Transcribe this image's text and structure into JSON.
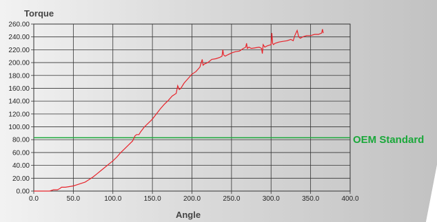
{
  "chart_data": {
    "type": "line",
    "ylabel": "Torque",
    "xlabel": "Angle",
    "xlim": [
      0,
      400
    ],
    "ylim": [
      0,
      260
    ],
    "x_ticks": [
      "0.0",
      "50.0",
      "100.0",
      "150.0",
      "200.0",
      "250.0",
      "300.0",
      "350.0",
      "400.0"
    ],
    "y_ticks": [
      "0.00",
      "20.00",
      "40.00",
      "60.00",
      "80.00",
      "100.00",
      "120.00",
      "140.00",
      "160.00",
      "180.00",
      "200.00",
      "220.00",
      "240.00",
      "260.00"
    ],
    "grid": true,
    "series": [
      {
        "color": "#e8232a",
        "x": [
          0,
          20,
          25,
          30,
          33,
          35,
          40,
          45,
          50,
          55,
          60,
          65,
          70,
          75,
          80,
          85,
          90,
          95,
          100,
          105,
          110,
          115,
          120,
          125,
          128,
          130,
          133,
          135,
          140,
          145,
          150,
          155,
          160,
          165,
          170,
          175,
          180,
          182,
          184,
          186,
          190,
          195,
          200,
          205,
          210,
          213,
          214,
          216,
          220,
          225,
          230,
          235,
          238,
          239,
          240,
          242,
          245,
          250,
          255,
          260,
          265,
          268,
          269,
          270,
          272,
          275,
          280,
          285,
          288,
          289,
          290,
          292,
          295,
          300,
          301,
          302,
          303,
          305,
          310,
          315,
          320,
          325,
          328,
          330,
          333,
          335,
          337,
          340,
          345,
          350,
          355,
          360,
          364,
          365,
          366
        ],
        "y": [
          0,
          0,
          2,
          2,
          4,
          6,
          6,
          7,
          8,
          10,
          12,
          14,
          18,
          22,
          27,
          32,
          37,
          42,
          47,
          53,
          60,
          66,
          72,
          78,
          86,
          88,
          88,
          92,
          100,
          106,
          112,
          120,
          128,
          135,
          141,
          148,
          152,
          164,
          158,
          160,
          168,
          175,
          182,
          186,
          193,
          205,
          196,
          198,
          200,
          205,
          206,
          208,
          210,
          220,
          212,
          210,
          212,
          215,
          217,
          218,
          222,
          224,
          230,
          222,
          224,
          222,
          223,
          224,
          222,
          214,
          228,
          224,
          226,
          228,
          246,
          230,
          228,
          230,
          232,
          233,
          234,
          236,
          234,
          242,
          250,
          240,
          238,
          240,
          242,
          242,
          244,
          244,
          246,
          252,
          246
        ]
      }
    ],
    "reference_line": {
      "label": "OEM Standard",
      "y": 83,
      "color": "#1aa83a"
    }
  }
}
